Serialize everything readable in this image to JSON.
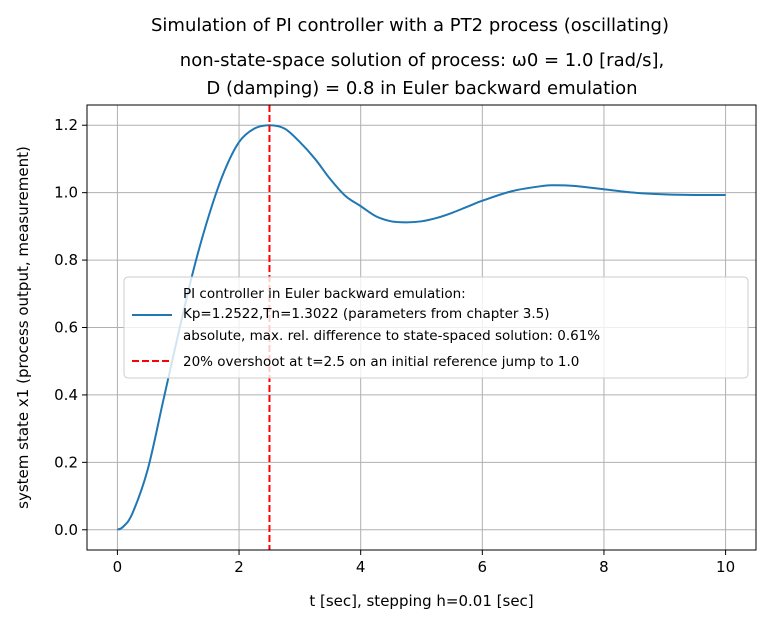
{
  "chart_data": {
    "type": "line",
    "title_lines": [
      "Simulation of PI controller with a PT2 process (oscillating)",
      "non-state-space solution of process: ω0 = 1.0 [rad/s],",
      "D (damping) = 0.8 in Euler backward emulation"
    ],
    "xlabel": "t [sec], stepping h=0.01 [sec]",
    "ylabel": "system state x1 (process output, measurement)",
    "xlim": [
      -0.5,
      10.5
    ],
    "ylim": [
      -0.06,
      1.26
    ],
    "xticks": [
      0,
      2,
      4,
      6,
      8,
      10
    ],
    "xtick_labels": [
      "0",
      "2",
      "4",
      "6",
      "8",
      "10"
    ],
    "yticks": [
      0.0,
      0.2,
      0.4,
      0.6,
      0.8,
      1.0,
      1.2
    ],
    "ytick_labels": [
      "0.0",
      "0.2",
      "0.4",
      "0.6",
      "0.8",
      "1.0",
      "1.2"
    ],
    "grid": true,
    "legend_position": "center-right",
    "series": [
      {
        "name_lines": [
          "PI controller in Euler backward emulation:",
          "Kp=1.2522,Tn=1.3022 (parameters from chapter 3.5)",
          "absolute, max. rel. difference to state-spaced solution: 0.61%"
        ],
        "color": "#1f77b4",
        "style": "solid",
        "x": [
          0,
          0.1,
          0.25,
          0.5,
          0.75,
          1.0,
          1.25,
          1.5,
          1.75,
          2.0,
          2.25,
          2.5,
          2.75,
          3.0,
          3.25,
          3.5,
          3.75,
          4.0,
          4.25,
          4.5,
          4.75,
          5.0,
          5.25,
          5.5,
          5.75,
          6.0,
          6.5,
          7.0,
          7.2,
          7.5,
          8.0,
          8.5,
          9.0,
          9.5,
          10.0
        ],
        "y": [
          0.0,
          0.01,
          0.05,
          0.18,
          0.38,
          0.58,
          0.77,
          0.93,
          1.06,
          1.15,
          1.19,
          1.2,
          1.19,
          1.15,
          1.1,
          1.04,
          0.99,
          0.96,
          0.93,
          0.915,
          0.912,
          0.915,
          0.925,
          0.94,
          0.958,
          0.976,
          1.005,
          1.02,
          1.022,
          1.02,
          1.01,
          1.0,
          0.995,
          0.993,
          0.993
        ]
      },
      {
        "name": "20% overshoot at t=2.5 on an initial reference jump to 1.0",
        "color": "#ff0000",
        "style": "dashed",
        "vline_x": 2.5
      }
    ]
  }
}
